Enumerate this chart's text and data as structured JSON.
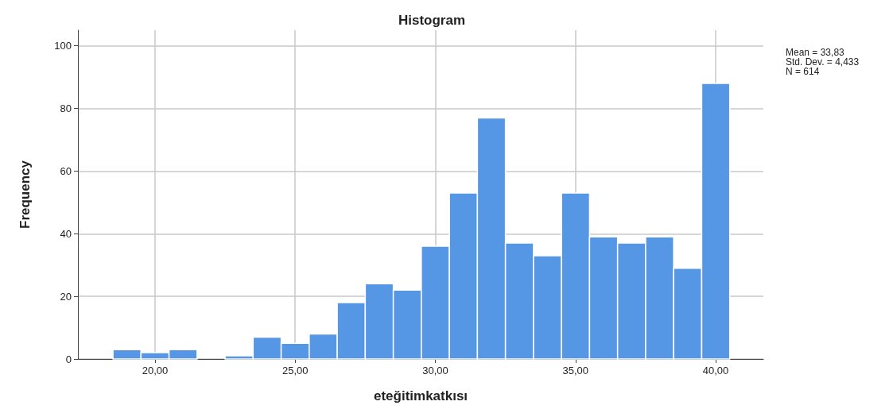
{
  "chart_data": {
    "type": "histogram",
    "title": "Histogram",
    "xlabel": "eteğitimkatkısı",
    "ylabel": "Frequency",
    "bins": [
      18.5,
      19.5,
      20.5,
      21.5,
      22.5,
      23.5,
      24.5,
      25.5,
      26.5,
      27.5,
      28.5,
      29.5,
      30.5,
      31.5,
      32.5,
      33.5,
      34.5,
      35.5,
      36.5,
      37.5,
      38.5,
      39.5,
      40.5
    ],
    "values": [
      3,
      2,
      3,
      0,
      1,
      7,
      5,
      8,
      18,
      24,
      22,
      36,
      53,
      77,
      37,
      33,
      53,
      39,
      37,
      39,
      29,
      88
    ],
    "color": "#5596e5",
    "xlim": [
      17.25,
      41.7
    ],
    "xticks": [
      {
        "value": 20,
        "label": "20,00"
      },
      {
        "value": 25,
        "label": "25,00"
      },
      {
        "value": 30,
        "label": "30,00"
      },
      {
        "value": 35,
        "label": "35,00"
      },
      {
        "value": 40,
        "label": "40,00"
      }
    ],
    "ylim": [
      0,
      105
    ],
    "yticks": [
      0,
      20,
      40,
      60,
      80,
      100
    ],
    "grid": true,
    "annotations": [
      "Mean = 33,83",
      "Std. Dev. = 4,433",
      "N = 614"
    ]
  }
}
